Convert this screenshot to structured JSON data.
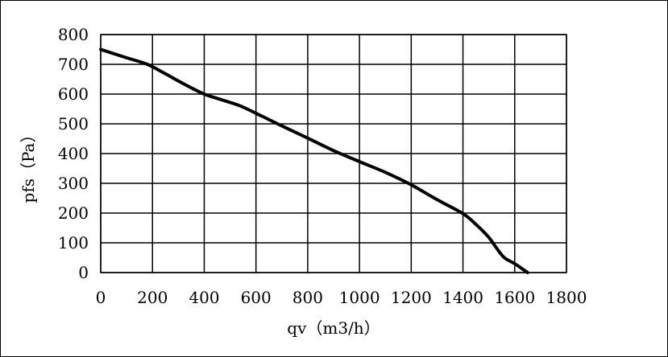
{
  "chart_data": {
    "type": "line",
    "xlabel": "qv（m3/h）",
    "ylabel": "pfs（Pa）",
    "xlim": [
      0,
      1800
    ],
    "ylim": [
      0,
      800
    ],
    "x_ticks": [
      "0",
      "200",
      "400",
      "600",
      "800",
      "1000",
      "1200",
      "1400",
      "1600",
      "1800"
    ],
    "y_ticks": [
      "0",
      "100",
      "200",
      "300",
      "400",
      "500",
      "600",
      "700",
      "800"
    ],
    "grid": true,
    "legend": "none",
    "line_color": "#000000",
    "series": [
      {
        "x": [
          0,
          100,
          180,
          250,
          330,
          400,
          470,
          540,
          620,
          700,
          800,
          900,
          1000,
          1100,
          1200,
          1300,
          1400,
          1450,
          1500,
          1530,
          1560,
          1600,
          1630,
          1650
        ],
        "y": [
          750,
          722,
          700,
          668,
          630,
          600,
          580,
          560,
          527,
          493,
          452,
          410,
          373,
          337,
          295,
          245,
          198,
          162,
          118,
          82,
          50,
          30,
          12,
          0
        ]
      }
    ]
  }
}
